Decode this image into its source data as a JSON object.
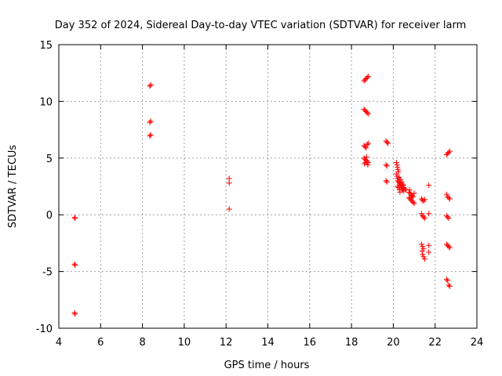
{
  "chart_data": {
    "type": "scatter",
    "title": "Day 352 of 2024, Sidereal Day-to-day VTEC variation (SDTVAR) for receiver larm",
    "xlabel": "GPS time / hours",
    "ylabel": "SDTVAR / TECUs",
    "xlim": [
      4,
      24
    ],
    "ylim": [
      -10,
      15
    ],
    "xticks": [
      4,
      6,
      8,
      10,
      12,
      14,
      16,
      18,
      20,
      22,
      24
    ],
    "yticks": [
      -10,
      -5,
      0,
      5,
      10,
      15
    ],
    "grid": true,
    "marker": "+",
    "color": "#ff0000",
    "series": [
      {
        "name": "SDTVAR",
        "points": [
          [
            4.75,
            -0.25
          ],
          [
            4.78,
            -0.3
          ],
          [
            4.75,
            -4.35
          ],
          [
            4.78,
            -4.45
          ],
          [
            4.75,
            -8.65
          ],
          [
            4.78,
            -8.75
          ],
          [
            8.35,
            11.35
          ],
          [
            8.4,
            11.45
          ],
          [
            8.35,
            8.15
          ],
          [
            8.4,
            8.25
          ],
          [
            8.35,
            6.95
          ],
          [
            8.4,
            7.05
          ],
          [
            12.15,
            3.2
          ],
          [
            12.15,
            2.8
          ],
          [
            12.15,
            0.5
          ],
          [
            18.6,
            11.8
          ],
          [
            18.65,
            11.9
          ],
          [
            18.7,
            12.0
          ],
          [
            18.75,
            12.1
          ],
          [
            18.8,
            12.2
          ],
          [
            18.6,
            9.3
          ],
          [
            18.65,
            9.2
          ],
          [
            18.7,
            9.1
          ],
          [
            18.75,
            9.0
          ],
          [
            18.8,
            8.9
          ],
          [
            18.6,
            6.1
          ],
          [
            18.65,
            6.0
          ],
          [
            18.7,
            5.9
          ],
          [
            18.75,
            6.2
          ],
          [
            18.8,
            6.3
          ],
          [
            18.6,
            5.0
          ],
          [
            18.65,
            4.9
          ],
          [
            18.7,
            4.8
          ],
          [
            18.75,
            4.7
          ],
          [
            18.8,
            4.6
          ],
          [
            18.62,
            4.5
          ],
          [
            18.68,
            4.6
          ],
          [
            18.72,
            5.1
          ],
          [
            18.78,
            4.4
          ],
          [
            19.65,
            6.5
          ],
          [
            19.7,
            6.4
          ],
          [
            19.75,
            6.3
          ],
          [
            19.65,
            4.4
          ],
          [
            19.7,
            4.3
          ],
          [
            19.65,
            3.0
          ],
          [
            19.7,
            2.9
          ],
          [
            20.15,
            4.6
          ],
          [
            20.18,
            4.4
          ],
          [
            20.2,
            4.2
          ],
          [
            20.22,
            4.0
          ],
          [
            20.25,
            3.8
          ],
          [
            20.15,
            3.6
          ],
          [
            20.18,
            3.4
          ],
          [
            20.2,
            3.2
          ],
          [
            20.22,
            3.0
          ],
          [
            20.25,
            2.9
          ],
          [
            20.28,
            3.3
          ],
          [
            20.3,
            2.8
          ],
          [
            20.32,
            2.7
          ],
          [
            20.35,
            2.6
          ],
          [
            20.38,
            2.5
          ],
          [
            20.4,
            2.4
          ],
          [
            20.42,
            2.3
          ],
          [
            20.45,
            2.2
          ],
          [
            20.48,
            2.6
          ],
          [
            20.5,
            2.1
          ],
          [
            20.2,
            2.5
          ],
          [
            20.25,
            2.4
          ],
          [
            20.3,
            2.2
          ],
          [
            20.35,
            3.1
          ],
          [
            20.4,
            2.9
          ],
          [
            20.45,
            2.7
          ],
          [
            20.5,
            2.4
          ],
          [
            20.55,
            2.3
          ],
          [
            20.6,
            2.2
          ],
          [
            20.32,
            2.0
          ],
          [
            20.75,
            2.0
          ],
          [
            20.8,
            1.9
          ],
          [
            20.85,
            1.8
          ],
          [
            20.9,
            1.7
          ],
          [
            20.95,
            1.6
          ],
          [
            20.75,
            1.5
          ],
          [
            20.8,
            1.4
          ],
          [
            20.85,
            1.3
          ],
          [
            20.9,
            1.2
          ],
          [
            20.95,
            1.1
          ],
          [
            21.0,
            1.0
          ],
          [
            21.0,
            1.9
          ],
          [
            20.78,
            2.2
          ],
          [
            20.88,
            1.55
          ],
          [
            21.35,
            1.4
          ],
          [
            21.4,
            1.3
          ],
          [
            21.45,
            1.2
          ],
          [
            21.5,
            1.35
          ],
          [
            21.35,
            0.1
          ],
          [
            21.4,
            -0.1
          ],
          [
            21.45,
            -0.2
          ],
          [
            21.5,
            -0.3
          ],
          [
            21.35,
            -2.6
          ],
          [
            21.4,
            -2.8
          ],
          [
            21.45,
            -3.0
          ],
          [
            21.38,
            -3.2
          ],
          [
            21.4,
            -3.5
          ],
          [
            21.45,
            -3.7
          ],
          [
            21.5,
            -3.9
          ],
          [
            21.7,
            2.6
          ],
          [
            21.7,
            0.1
          ],
          [
            21.7,
            -2.7
          ],
          [
            21.7,
            -3.3
          ],
          [
            22.55,
            5.3
          ],
          [
            22.6,
            5.4
          ],
          [
            22.65,
            5.5
          ],
          [
            22.7,
            5.6
          ],
          [
            22.55,
            1.8
          ],
          [
            22.6,
            1.6
          ],
          [
            22.65,
            1.5
          ],
          [
            22.7,
            1.4
          ],
          [
            22.55,
            -0.1
          ],
          [
            22.6,
            -0.2
          ],
          [
            22.65,
            -0.3
          ],
          [
            22.55,
            -2.6
          ],
          [
            22.6,
            -2.7
          ],
          [
            22.65,
            -2.8
          ],
          [
            22.7,
            -2.9
          ],
          [
            22.55,
            -5.7
          ],
          [
            22.6,
            -5.8
          ],
          [
            22.65,
            -6.2
          ],
          [
            22.7,
            -6.3
          ]
        ]
      }
    ]
  }
}
